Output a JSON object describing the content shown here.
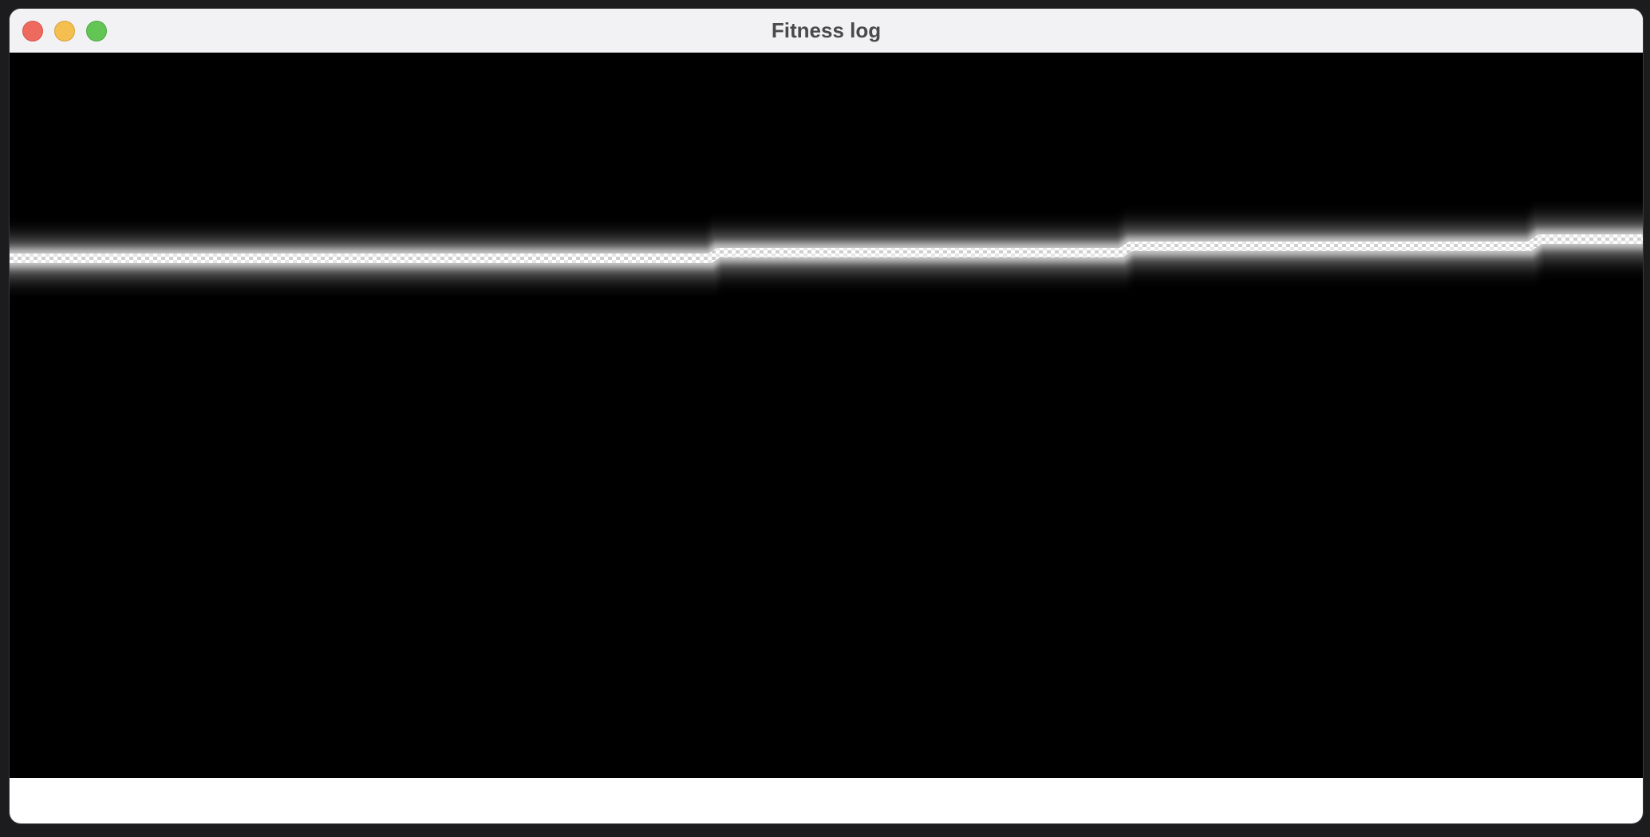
{
  "window": {
    "title": "Fitness log"
  }
}
